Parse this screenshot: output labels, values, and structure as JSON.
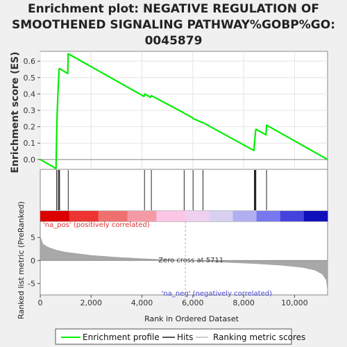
{
  "chart_data": {
    "type": "line",
    "title_lines": [
      "Enrichment plot: NEGATIVE REGULATION OF",
      "SMOOTHENED SIGNALING PATHWAY%GOBP%GO:",
      "0045879"
    ],
    "ylabel_top": "Enrichment score (ES)",
    "ylabel_bottom": "Ranked list metric (PreRanked)",
    "xlabel": "Rank in Ordered Dataset",
    "x_range": [
      0,
      11300
    ],
    "x_ticks": [
      0,
      2000,
      4000,
      6000,
      8000,
      10000
    ],
    "x_tick_labels": [
      "0",
      "2,000",
      "4,000",
      "6,000",
      "8,000",
      "10,000"
    ],
    "es_ylim": [
      -0.06,
      0.66
    ],
    "es_ticks": [
      0.0,
      0.1,
      0.2,
      0.3,
      0.4,
      0.5,
      0.6
    ],
    "es_tick_labels": [
      "0.0",
      "0.1",
      "0.2",
      "0.3",
      "0.4",
      "0.5",
      "0.6"
    ],
    "metric_ylim": [
      -7.5,
      8.5
    ],
    "metric_ticks": [
      -5,
      0,
      5
    ],
    "metric_tick_labels": [
      "-5",
      "0",
      "5"
    ],
    "enrichment_profile": {
      "name": "Enrichment profile",
      "color": "#00ee00",
      "x": [
        0,
        620,
        640,
        660,
        700,
        740,
        760,
        1080,
        1100,
        4080,
        4100,
        4340,
        4370,
        5640,
        5660,
        5990,
        6010,
        6380,
        6400,
        8400,
        8420,
        8440,
        8460,
        8480,
        8880,
        8900,
        11300
      ],
      "y": [
        0.0,
        -0.055,
        0.1,
        0.26,
        0.41,
        0.55,
        0.555,
        0.525,
        0.645,
        0.385,
        0.4,
        0.38,
        0.39,
        0.285,
        0.282,
        0.255,
        0.25,
        0.225,
        0.225,
        0.055,
        0.09,
        0.125,
        0.16,
        0.185,
        0.15,
        0.21,
        0.0
      ]
    },
    "hits": {
      "name": "Hits",
      "x": [
        640,
        700,
        740,
        760,
        1100,
        4100,
        4370,
        5660,
        6010,
        6400,
        8420,
        8440,
        8460,
        8480,
        8900
      ]
    },
    "ranking_metric": {
      "name": "Ranking metric scores",
      "x": [
        0,
        100,
        300,
        600,
        1000,
        2000,
        3000,
        4000,
        5000,
        5711,
        6500,
        7500,
        8500,
        9500,
        10300,
        10800,
        11100,
        11250,
        11300
      ],
      "y": [
        5.2,
        3.6,
        2.9,
        2.3,
        1.8,
        1.1,
        0.7,
        0.4,
        0.15,
        0.0,
        -0.2,
        -0.45,
        -0.7,
        -1.05,
        -1.5,
        -2.1,
        -3.0,
        -4.3,
        -6.5
      ]
    },
    "zero_cross_label": "Zero cross at 5711",
    "zero_cross_x": 5711,
    "pos_label": "'na_pos' (positively correlated)",
    "neg_label": "'na_neg' (negatively correlated)",
    "heatmap_colors": [
      "#dd0000",
      "#ee3333",
      "#f07070",
      "#f59aa5",
      "#fcc6e6",
      "#f0d0f0",
      "#d8d0f0",
      "#b0b0f0",
      "#7777ee",
      "#4444dd",
      "#1111bb"
    ],
    "legend": [
      "Enrichment profile",
      "Hits",
      "Ranking metric scores"
    ]
  }
}
